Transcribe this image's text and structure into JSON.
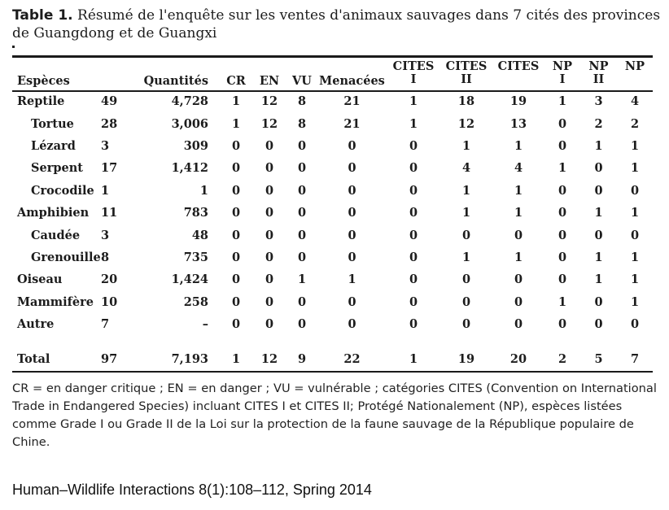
{
  "caption": {
    "label": "Table 1.",
    "text": "Résumé de l'enquête sur les ventes d'animaux sauvages dans 7 cités des provinces de Guangdong et de Guangxi"
  },
  "headers": {
    "species": "Espèces",
    "quantities": "Quantités",
    "cr": "CR",
    "en": "EN",
    "vu": "VU",
    "menacees": "Menacées",
    "cites1": [
      "CITES",
      "I"
    ],
    "cites2": [
      "CITES",
      "II"
    ],
    "cites": "CITES",
    "np1": [
      "NP",
      "I"
    ],
    "np2": [
      "NP",
      "II"
    ],
    "np": "NP"
  },
  "rows": [
    {
      "name": "Reptile",
      "sub": false,
      "n": "49",
      "qty": "4,728",
      "cr": "1",
      "en": "12",
      "vu": "8",
      "men": "21",
      "c1": "1",
      "c2": "18",
      "c": "19",
      "np1": "1",
      "np2": "3",
      "np": "4"
    },
    {
      "name": "Tortue",
      "sub": true,
      "n": "28",
      "qty": "3,006",
      "cr": "1",
      "en": "12",
      "vu": "8",
      "men": "21",
      "c1": "1",
      "c2": "12",
      "c": "13",
      "np1": "0",
      "np2": "2",
      "np": "2"
    },
    {
      "name": "Lézard",
      "sub": true,
      "n": "3",
      "qty": "309",
      "cr": "0",
      "en": "0",
      "vu": "0",
      "men": "0",
      "c1": "0",
      "c2": "1",
      "c": "1",
      "np1": "0",
      "np2": "1",
      "np": "1"
    },
    {
      "name": "Serpent",
      "sub": true,
      "n": "17",
      "qty": "1,412",
      "cr": "0",
      "en": "0",
      "vu": "0",
      "men": "0",
      "c1": "0",
      "c2": "4",
      "c": "4",
      "np1": "1",
      "np2": "0",
      "np": "1"
    },
    {
      "name": "Crocodile",
      "sub": true,
      "n": "1",
      "qty": "1",
      "cr": "0",
      "en": "0",
      "vu": "0",
      "men": "0",
      "c1": "0",
      "c2": "1",
      "c": "1",
      "np1": "0",
      "np2": "0",
      "np": "0"
    },
    {
      "name": "Amphibien",
      "sub": false,
      "n": "11",
      "qty": "783",
      "cr": "0",
      "en": "0",
      "vu": "0",
      "men": "0",
      "c1": "0",
      "c2": "1",
      "c": "1",
      "np1": "0",
      "np2": "1",
      "np": "1"
    },
    {
      "name": "Caudée",
      "sub": true,
      "n": "3",
      "qty": "48",
      "cr": "0",
      "en": "0",
      "vu": "0",
      "men": "0",
      "c1": "0",
      "c2": "0",
      "c": "0",
      "np1": "0",
      "np2": "0",
      "np": "0"
    },
    {
      "name": "Grenouille",
      "sub": true,
      "n": "8",
      "qty": "735",
      "cr": "0",
      "en": "0",
      "vu": "0",
      "men": "0",
      "c1": "0",
      "c2": "1",
      "c": "1",
      "np1": "0",
      "np2": "1",
      "np": "1"
    },
    {
      "name": "Oiseau",
      "sub": false,
      "n": "20",
      "qty": "1,424",
      "cr": "0",
      "en": "0",
      "vu": "1",
      "men": "1",
      "c1": "0",
      "c2": "0",
      "c": "0",
      "np1": "0",
      "np2": "1",
      "np": "1"
    },
    {
      "name": "Mammifère",
      "sub": false,
      "n": "10",
      "qty": "258",
      "cr": "0",
      "en": "0",
      "vu": "0",
      "men": "0",
      "c1": "0",
      "c2": "0",
      "c": "0",
      "np1": "1",
      "np2": "0",
      "np": "1"
    },
    {
      "name": "Autre",
      "sub": false,
      "n": "7",
      "qty": "–",
      "cr": "0",
      "en": "0",
      "vu": "0",
      "men": "0",
      "c1": "0",
      "c2": "0",
      "c": "0",
      "np1": "0",
      "np2": "0",
      "np": "0"
    }
  ],
  "total": {
    "name": "Total",
    "n": "97",
    "qty": "7,193",
    "cr": "1",
    "en": "12",
    "vu": "9",
    "men": "22",
    "c1": "1",
    "c2": "19",
    "c": "20",
    "np1": "2",
    "np2": "5",
    "np": "7"
  },
  "footnote": "CR = en danger critique ; EN = en danger ; VU = vulnérable ; catégories CITES (Convention on International Trade in Endangered Species) incluant CITES I et CITES II; Protégé Nationalement (NP), espèces listées comme Grade I ou Grade II de la Loi sur la protection de la faune sauvage de la République populaire de Chine.",
  "source": "Human–Wildlife Interactions 8(1):108–112, Spring 2014"
}
